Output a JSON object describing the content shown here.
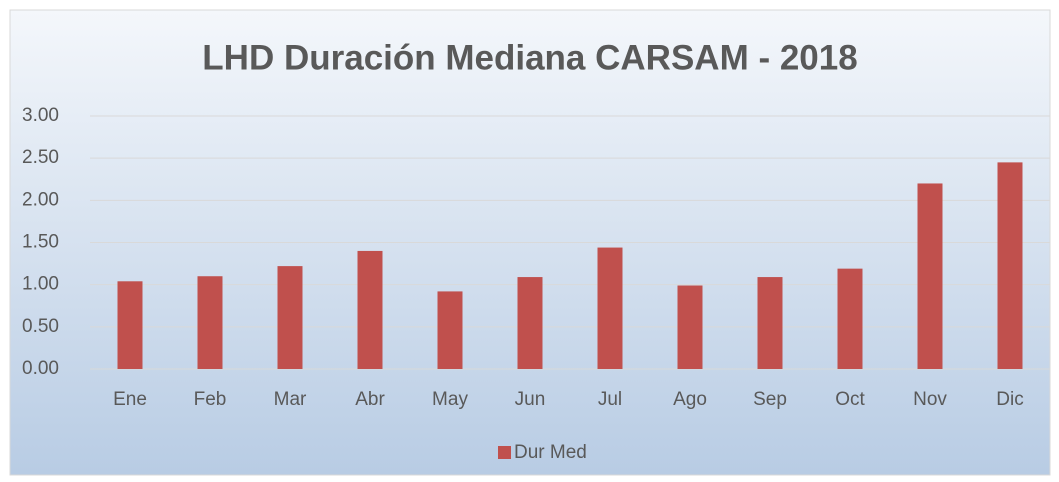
{
  "chart_data": {
    "type": "bar",
    "title": "LHD Duración Mediana CARSAM - 2018",
    "categories": [
      "Ene",
      "Feb",
      "Mar",
      "Abr",
      "May",
      "Jun",
      "Jul",
      "Ago",
      "Sep",
      "Oct",
      "Nov",
      "Dic"
    ],
    "series": [
      {
        "name": "Dur Med",
        "color": "#c0504d",
        "values": [
          1.04,
          1.1,
          1.22,
          1.4,
          0.92,
          1.09,
          1.44,
          0.99,
          1.09,
          1.19,
          2.2,
          2.45
        ]
      }
    ],
    "ylim": [
      0,
      3
    ],
    "yticks": [
      {
        "value": 0,
        "label": "0.00"
      },
      {
        "value": 0.5,
        "label": "0.50"
      },
      {
        "value": 1,
        "label": "1.00"
      },
      {
        "value": 1.5,
        "label": "1.50"
      },
      {
        "value": 2,
        "label": "2.00"
      },
      {
        "value": 2.5,
        "label": "2.50"
      },
      {
        "value": 3,
        "label": "3.00"
      }
    ],
    "grid": true,
    "legend": "bottom"
  }
}
